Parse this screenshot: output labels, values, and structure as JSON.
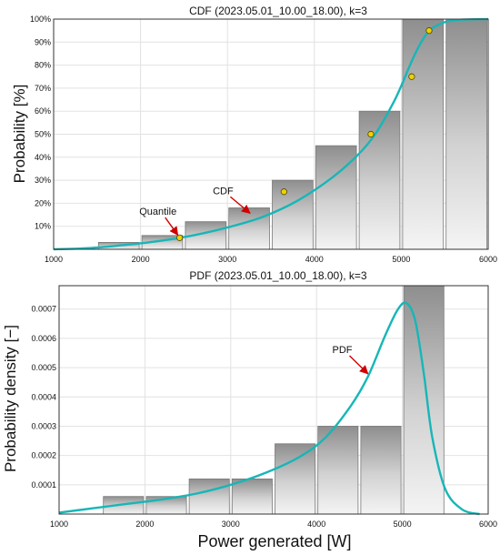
{
  "charts": [
    {
      "title": "CDF (2023.05.01_10.00_18.00), k=3",
      "ylabel": "Probability [%]",
      "xlabel": "",
      "chart_data": {
        "type": "bar",
        "title": "CDF (2023.05.01_10.00_18.00), k=3",
        "xlabel": "",
        "ylabel": "Probability [%]",
        "xlim": [
          1000,
          6000
        ],
        "ylim": [
          0,
          100
        ],
        "xticks": [
          1000,
          2000,
          3000,
          4000,
          5000,
          6000
        ],
        "yticks": [
          10,
          20,
          30,
          40,
          50,
          60,
          70,
          80,
          90,
          100
        ],
        "tick_format": "percent",
        "grid": true,
        "bins": [
          {
            "x0": 1500,
            "x1": 2000,
            "value": 3
          },
          {
            "x0": 2000,
            "x1": 2500,
            "value": 6
          },
          {
            "x0": 2500,
            "x1": 3000,
            "value": 12
          },
          {
            "x0": 3000,
            "x1": 3500,
            "value": 18
          },
          {
            "x0": 3500,
            "x1": 4000,
            "value": 30
          },
          {
            "x0": 4000,
            "x1": 4500,
            "value": 45
          },
          {
            "x0": 4500,
            "x1": 5000,
            "value": 60
          },
          {
            "x0": 5000,
            "x1": 5500,
            "value": 100
          },
          {
            "x0": 5500,
            "x1": 6000,
            "value": 100
          }
        ],
        "curve": {
          "x": [
            1000,
            1400,
            1800,
            2200,
            2600,
            3000,
            3400,
            3800,
            4200,
            4500,
            4700,
            4900,
            5000,
            5100,
            5200,
            5300,
            5400,
            5600,
            6000
          ],
          "y": [
            0,
            0.5,
            1.8,
            3.5,
            6,
            9.5,
            14,
            21,
            31,
            41,
            50,
            63,
            71,
            80,
            88,
            94,
            97,
            99.5,
            100
          ]
        },
        "quantile_points": {
          "x": [
            2450,
            3650,
            4650,
            5120,
            5320
          ],
          "y": [
            5,
            25,
            50,
            75,
            95
          ]
        },
        "annotations": [
          {
            "text": "Quantile",
            "x": 2200,
            "y": 15,
            "arrow_to": [
              2450,
              5
            ]
          },
          {
            "text": "CDF",
            "x": 2950,
            "y": 24,
            "arrow_to": [
              3280,
              14.5
            ]
          }
        ]
      }
    },
    {
      "title": "PDF (2023.05.01_10.00_18.00), k=3",
      "ylabel": "Probability density [−]",
      "xlabel": "Power generated [W]",
      "chart_data": {
        "type": "bar",
        "title": "PDF (2023.05.01_10.00_18.00), k=3",
        "xlabel": "Power generated [W]",
        "ylabel": "Probability density [−]",
        "xlim": [
          1000,
          6000
        ],
        "ylim": [
          0,
          0.00078
        ],
        "xticks": [
          1000,
          2000,
          3000,
          4000,
          5000,
          6000
        ],
        "yticks": [
          0.0001,
          0.0002,
          0.0003,
          0.0004,
          0.0005,
          0.0006,
          0.0007
        ],
        "tick_format": "decimal4",
        "grid": true,
        "bins": [
          {
            "x0": 1500,
            "x1": 2000,
            "value": 6e-05
          },
          {
            "x0": 2000,
            "x1": 2500,
            "value": 6e-05
          },
          {
            "x0": 2500,
            "x1": 3000,
            "value": 0.00012
          },
          {
            "x0": 3000,
            "x1": 3500,
            "value": 0.00012
          },
          {
            "x0": 3500,
            "x1": 4000,
            "value": 0.00024
          },
          {
            "x0": 4000,
            "x1": 4500,
            "value": 0.0003
          },
          {
            "x0": 4500,
            "x1": 5000,
            "value": 0.0003
          },
          {
            "x0": 5000,
            "x1": 5500,
            "value": 0.00078
          }
        ],
        "curve": {
          "x": [
            1000,
            1400,
            1800,
            2200,
            2600,
            3000,
            3400,
            3800,
            4100,
            4400,
            4600,
            4800,
            4950,
            5050,
            5150,
            5250,
            5350,
            5500,
            5700,
            5900
          ],
          "y": [
            5e-06,
            2e-05,
            3.5e-05,
            5e-05,
            7e-05,
            0.0001,
            0.00014,
            0.000195,
            0.00026,
            0.00037,
            0.00047,
            0.00061,
            0.0007,
            0.00072,
            0.00066,
            0.00048,
            0.00026,
            8.5e-05,
            1.5e-05,
            0.0
          ]
        },
        "annotations": [
          {
            "text": "PDF",
            "x": 4300,
            "y": 0.00055,
            "arrow_to": [
              4620,
              0.00047
            ]
          }
        ]
      }
    }
  ]
}
